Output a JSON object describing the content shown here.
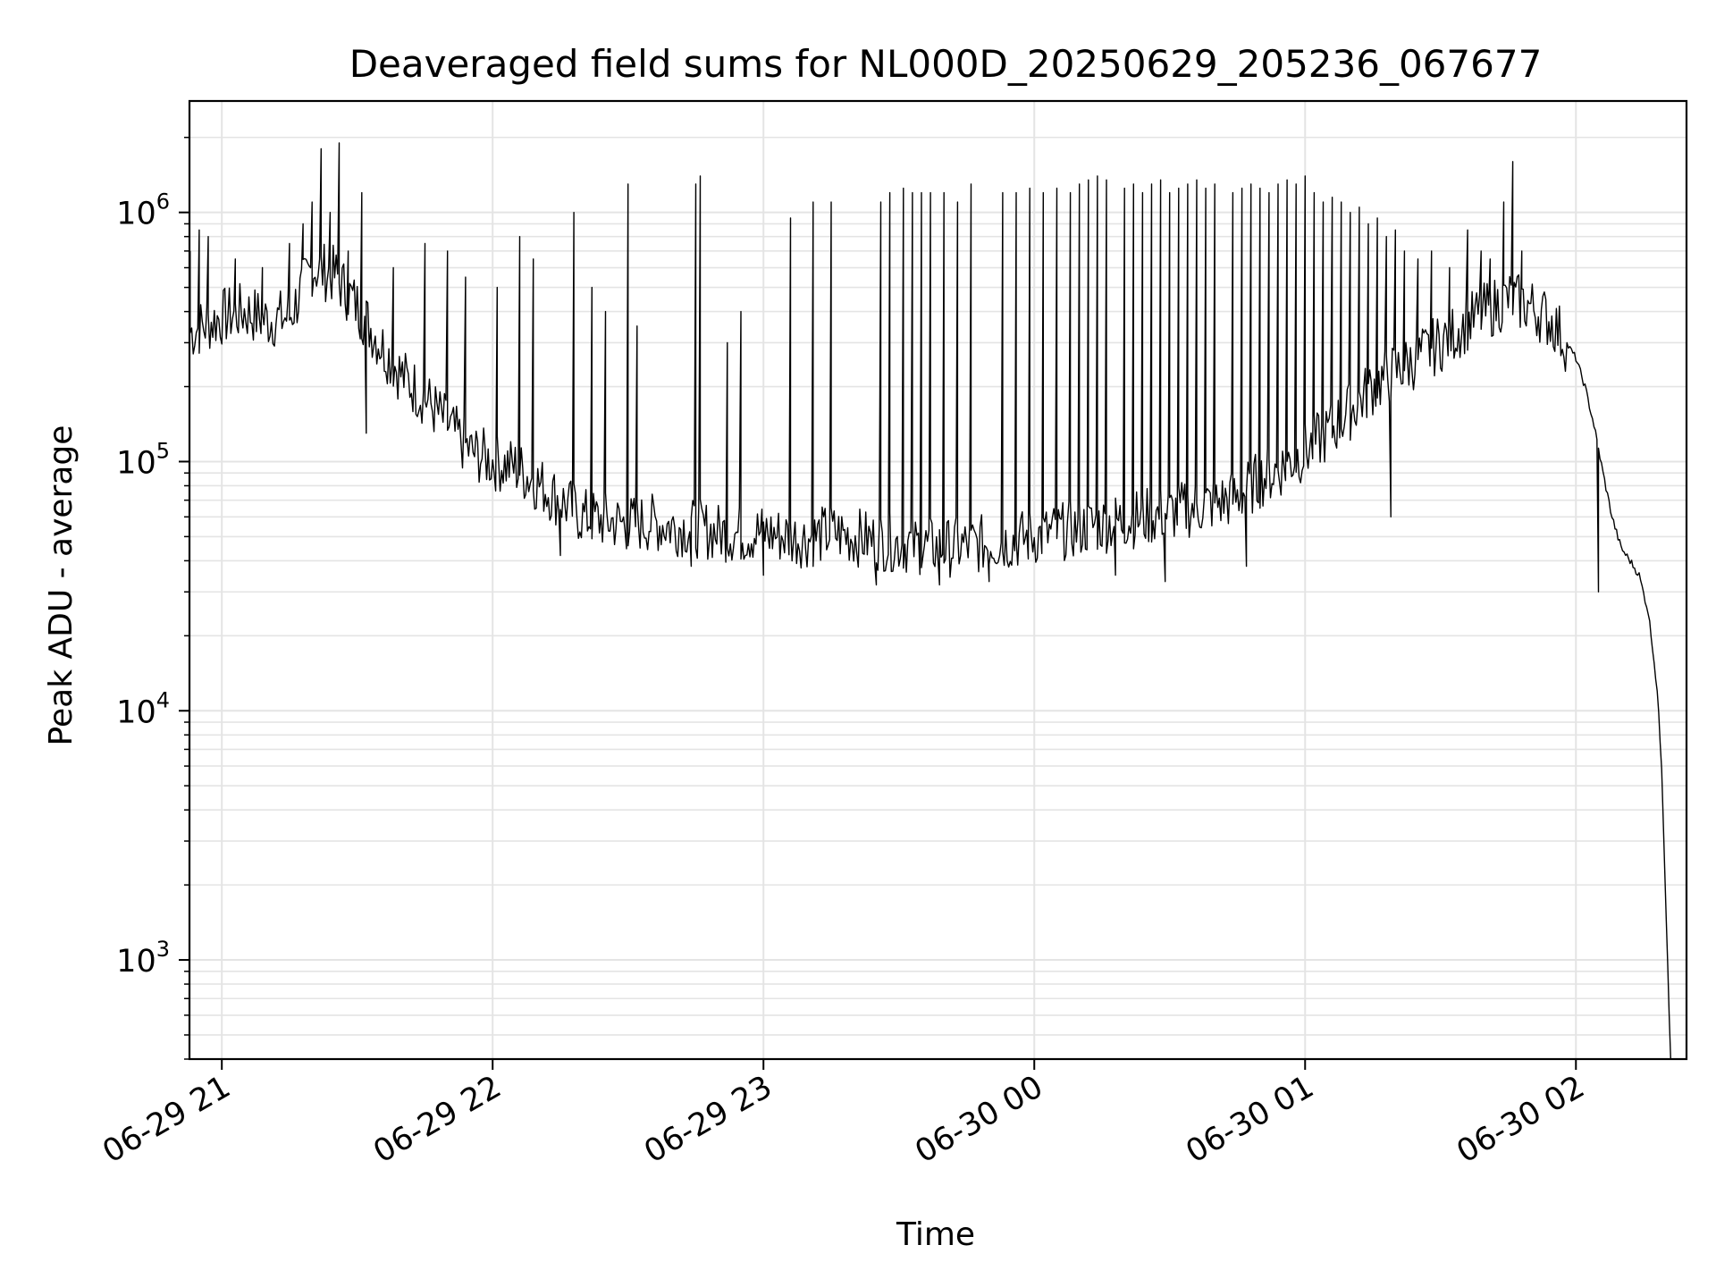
{
  "chart_data": {
    "type": "line",
    "title": "Deaveraged field sums for NL000D_20250629_205236_067677",
    "xlabel": "Time",
    "ylabel": "Peak ADU - average",
    "y_scale": "log",
    "ylim": [
      400,
      2800000
    ],
    "xlim": [
      "2025-06-29 20:52:50",
      "2025-06-30 02:24:30"
    ],
    "grid": true,
    "x_ticks": [
      {
        "label": "06-29 21",
        "time": "2025-06-29 21:00:00"
      },
      {
        "label": "06-29 22",
        "time": "2025-06-29 22:00:00"
      },
      {
        "label": "06-29 23",
        "time": "2025-06-29 23:00:00"
      },
      {
        "label": "06-30 00",
        "time": "2025-06-30 00:00:00"
      },
      {
        "label": "06-30 01",
        "time": "2025-06-30 01:00:00"
      },
      {
        "label": "06-30 02",
        "time": "2025-06-30 02:00:00"
      }
    ],
    "y_ticks": [
      {
        "base": "10",
        "exp": "3",
        "value": 1000
      },
      {
        "base": "10",
        "exp": "4",
        "value": 10000
      },
      {
        "base": "10",
        "exp": "5",
        "value": 100000
      },
      {
        "base": "10",
        "exp": "6",
        "value": 1000000
      }
    ],
    "line_color": "#000000",
    "grid_color": "#e4e4e4",
    "series": [
      {
        "x": [
          "2025-06-29 20:53",
          "2025-06-29 21:00",
          "2025-06-29 21:05",
          "2025-06-29 21:10",
          "2025-06-29 21:15",
          "2025-06-29 21:20",
          "2025-06-29 21:25",
          "2025-06-29 21:30",
          "2025-06-29 21:35",
          "2025-06-29 21:40",
          "2025-06-29 21:45",
          "2025-06-29 21:50",
          "2025-06-29 21:55",
          "2025-06-29 22:00",
          "2025-06-29 22:05",
          "2025-06-29 22:10",
          "2025-06-29 22:15",
          "2025-06-29 22:20",
          "2025-06-29 22:25",
          "2025-06-29 22:30",
          "2025-06-29 22:35",
          "2025-06-29 22:40",
          "2025-06-29 22:45",
          "2025-06-29 22:50",
          "2025-06-29 22:55",
          "2025-06-29 23:00",
          "2025-06-29 23:05",
          "2025-06-29 23:10",
          "2025-06-29 23:15",
          "2025-06-29 23:20",
          "2025-06-29 23:25",
          "2025-06-29 23:30",
          "2025-06-29 23:35",
          "2025-06-29 23:40",
          "2025-06-29 23:45",
          "2025-06-29 23:50",
          "2025-06-29 23:55",
          "2025-06-30 00:00",
          "2025-06-30 00:05",
          "2025-06-30 00:10",
          "2025-06-30 00:15",
          "2025-06-30 00:20",
          "2025-06-30 00:25",
          "2025-06-30 00:30",
          "2025-06-30 00:35",
          "2025-06-30 00:40",
          "2025-06-30 00:45",
          "2025-06-30 00:50",
          "2025-06-30 00:55",
          "2025-06-30 01:00",
          "2025-06-30 01:05",
          "2025-06-30 01:10",
          "2025-06-30 01:15",
          "2025-06-30 01:20",
          "2025-06-30 01:25",
          "2025-06-30 01:30",
          "2025-06-30 01:35",
          "2025-06-30 01:40",
          "2025-06-30 01:45",
          "2025-06-30 01:50",
          "2025-06-30 01:55",
          "2025-06-30 02:00",
          "2025-06-30 02:02",
          "2025-06-30 02:04",
          "2025-06-30 02:06",
          "2025-06-30 02:08",
          "2025-06-30 02:10",
          "2025-06-30 02:12",
          "2025-06-30 02:14",
          "2025-06-30 02:16",
          "2025-06-30 02:17",
          "2025-06-30 02:18",
          "2025-06-30 02:19",
          "2025-06-30 02:20",
          "2025-06-30 02:21"
        ],
        "y": [
          330000,
          380000,
          400000,
          370000,
          380000,
          600000,
          560000,
          420000,
          300000,
          220000,
          180000,
          140000,
          110000,
          100000,
          95000,
          82000,
          70000,
          60000,
          58000,
          56000,
          57000,
          55000,
          54000,
          52000,
          51000,
          52000,
          50000,
          49000,
          52000,
          50000,
          48000,
          47000,
          46000,
          45000,
          46000,
          47000,
          48000,
          50000,
          52000,
          54000,
          56000,
          58000,
          60000,
          62000,
          65000,
          68000,
          72000,
          85000,
          95000,
          110000,
          130000,
          160000,
          200000,
          230000,
          260000,
          300000,
          350000,
          400000,
          450000,
          420000,
          360000,
          260000,
          200000,
          140000,
          90000,
          60000,
          45000,
          40000,
          35000,
          25000,
          18000,
          12000,
          6000,
          1500,
          400
        ],
        "spikes": [
          {
            "x": "2025-06-29 20:53",
            "y": 700000
          },
          {
            "x": "2025-06-29 20:55",
            "y": 850000
          },
          {
            "x": "2025-06-29 20:57",
            "y": 800000
          },
          {
            "x": "2025-06-29 21:03",
            "y": 650000
          },
          {
            "x": "2025-06-29 21:09",
            "y": 600000
          },
          {
            "x": "2025-06-29 21:15",
            "y": 750000
          },
          {
            "x": "2025-06-29 21:18",
            "y": 900000
          },
          {
            "x": "2025-06-29 21:20",
            "y": 1100000
          },
          {
            "x": "2025-06-29 21:22",
            "y": 1800000
          },
          {
            "x": "2025-06-29 21:24",
            "y": 1000000
          },
          {
            "x": "2025-06-29 21:26",
            "y": 1900000
          },
          {
            "x": "2025-06-29 21:28",
            "y": 700000
          },
          {
            "x": "2025-06-29 21:31",
            "y": 1200000
          },
          {
            "x": "2025-06-29 21:32",
            "y": 900000
          },
          {
            "x": "2025-06-29 21:38",
            "y": 600000
          },
          {
            "x": "2025-06-29 21:45",
            "y": 750000
          },
          {
            "x": "2025-06-29 21:50",
            "y": 700000
          },
          {
            "x": "2025-06-29 21:54",
            "y": 550000
          },
          {
            "x": "2025-06-29 22:01",
            "y": 500000
          },
          {
            "x": "2025-06-29 22:06",
            "y": 800000
          },
          {
            "x": "2025-06-29 22:09",
            "y": 650000
          },
          {
            "x": "2025-06-29 22:15",
            "y": 520000
          },
          {
            "x": "2025-06-29 22:18",
            "y": 1000000
          },
          {
            "x": "2025-06-29 22:22",
            "y": 500000
          },
          {
            "x": "2025-06-29 22:25",
            "y": 400000
          },
          {
            "x": "2025-06-29 22:30",
            "y": 1300000
          },
          {
            "x": "2025-06-29 22:32",
            "y": 350000
          },
          {
            "x": "2025-06-29 22:45",
            "y": 1300000
          },
          {
            "x": "2025-06-29 22:46",
            "y": 1400000
          },
          {
            "x": "2025-06-29 22:52",
            "y": 300000
          },
          {
            "x": "2025-06-29 22:55",
            "y": 400000
          },
          {
            "x": "2025-06-29 23:06",
            "y": 950000
          },
          {
            "x": "2025-06-29 23:11",
            "y": 1100000
          },
          {
            "x": "2025-06-29 23:15",
            "y": 1100000
          },
          {
            "x": "2025-06-29 23:26",
            "y": 1100000
          },
          {
            "x": "2025-06-29 23:28",
            "y": 1200000
          },
          {
            "x": "2025-06-29 23:31",
            "y": 1250000
          },
          {
            "x": "2025-06-29 23:33",
            "y": 1200000
          },
          {
            "x": "2025-06-29 23:35",
            "y": 1200000
          },
          {
            "x": "2025-06-29 23:37",
            "y": 1200000
          },
          {
            "x": "2025-06-29 23:40",
            "y": 1200000
          },
          {
            "x": "2025-06-29 23:43",
            "y": 1100000
          },
          {
            "x": "2025-06-29 23:46",
            "y": 1300000
          },
          {
            "x": "2025-06-29 23:50",
            "y": 1200000
          },
          {
            "x": "2025-06-29 23:53",
            "y": 1200000
          },
          {
            "x": "2025-06-29 23:56",
            "y": 1200000
          },
          {
            "x": "2025-06-29 23:59",
            "y": 1250000
          },
          {
            "x": "2025-06-30 00:02",
            "y": 1200000
          },
          {
            "x": "2025-06-30 00:05",
            "y": 1250000
          },
          {
            "x": "2025-06-30 00:08",
            "y": 1200000
          },
          {
            "x": "2025-06-30 00:10",
            "y": 1300000
          },
          {
            "x": "2025-06-30 00:12",
            "y": 1350000
          },
          {
            "x": "2025-06-30 00:14",
            "y": 1400000
          },
          {
            "x": "2025-06-30 00:16",
            "y": 1350000
          },
          {
            "x": "2025-06-30 00:18",
            "y": 1300000
          },
          {
            "x": "2025-06-30 00:20",
            "y": 1250000
          },
          {
            "x": "2025-06-30 00:22",
            "y": 1300000
          },
          {
            "x": "2025-06-30 00:24",
            "y": 1200000
          },
          {
            "x": "2025-06-30 00:26",
            "y": 1300000
          },
          {
            "x": "2025-06-30 00:28",
            "y": 1350000
          },
          {
            "x": "2025-06-30 00:30",
            "y": 1200000
          },
          {
            "x": "2025-06-30 00:32",
            "y": 1250000
          },
          {
            "x": "2025-06-30 00:34",
            "y": 1300000
          },
          {
            "x": "2025-06-30 00:36",
            "y": 1350000
          },
          {
            "x": "2025-06-30 00:38",
            "y": 1250000
          },
          {
            "x": "2025-06-30 00:40",
            "y": 1300000
          },
          {
            "x": "2025-06-30 00:44",
            "y": 1200000
          },
          {
            "x": "2025-06-30 00:46",
            "y": 1250000
          },
          {
            "x": "2025-06-30 00:48",
            "y": 1300000
          },
          {
            "x": "2025-06-30 00:50",
            "y": 1250000
          },
          {
            "x": "2025-06-30 00:52",
            "y": 1200000
          },
          {
            "x": "2025-06-30 00:54",
            "y": 1300000
          },
          {
            "x": "2025-06-30 00:56",
            "y": 1350000
          },
          {
            "x": "2025-06-30 00:58",
            "y": 1300000
          },
          {
            "x": "2025-06-30 01:00",
            "y": 1400000
          },
          {
            "x": "2025-06-30 01:02",
            "y": 1200000
          },
          {
            "x": "2025-06-30 01:04",
            "y": 1100000
          },
          {
            "x": "2025-06-30 01:06",
            "y": 1150000
          },
          {
            "x": "2025-06-30 01:08",
            "y": 1100000
          },
          {
            "x": "2025-06-30 01:10",
            "y": 1000000
          },
          {
            "x": "2025-06-30 01:12",
            "y": 1050000
          },
          {
            "x": "2025-06-30 01:14",
            "y": 900000
          },
          {
            "x": "2025-06-30 01:16",
            "y": 950000
          },
          {
            "x": "2025-06-30 01:18",
            "y": 800000
          },
          {
            "x": "2025-06-30 01:20",
            "y": 850000
          },
          {
            "x": "2025-06-30 01:22",
            "y": 700000
          },
          {
            "x": "2025-06-30 01:25",
            "y": 650000
          },
          {
            "x": "2025-06-30 01:28",
            "y": 700000
          },
          {
            "x": "2025-06-30 01:32",
            "y": 600000
          },
          {
            "x": "2025-06-30 01:36",
            "y": 850000
          },
          {
            "x": "2025-06-30 01:39",
            "y": 700000
          },
          {
            "x": "2025-06-30 01:41",
            "y": 650000
          },
          {
            "x": "2025-06-30 01:44",
            "y": 1100000
          },
          {
            "x": "2025-06-30 01:46",
            "y": 1600000
          },
          {
            "x": "2025-06-30 01:48",
            "y": 700000
          }
        ],
        "dips": [
          {
            "x": "2025-06-29 21:32",
            "y": 130000
          },
          {
            "x": "2025-06-29 22:15",
            "y": 42000
          },
          {
            "x": "2025-06-29 22:44",
            "y": 38000
          },
          {
            "x": "2025-06-29 23:00",
            "y": 35000
          },
          {
            "x": "2025-06-29 23:25",
            "y": 32000
          },
          {
            "x": "2025-06-29 23:39",
            "y": 32000
          },
          {
            "x": "2025-06-29 23:50",
            "y": 33000
          },
          {
            "x": "2025-06-30 00:18",
            "y": 35000
          },
          {
            "x": "2025-06-30 00:29",
            "y": 33000
          },
          {
            "x": "2025-06-30 00:47",
            "y": 38000
          },
          {
            "x": "2025-06-30 01:19",
            "y": 60000
          },
          {
            "x": "2025-06-30 02:05",
            "y": 30000
          }
        ]
      }
    ]
  }
}
